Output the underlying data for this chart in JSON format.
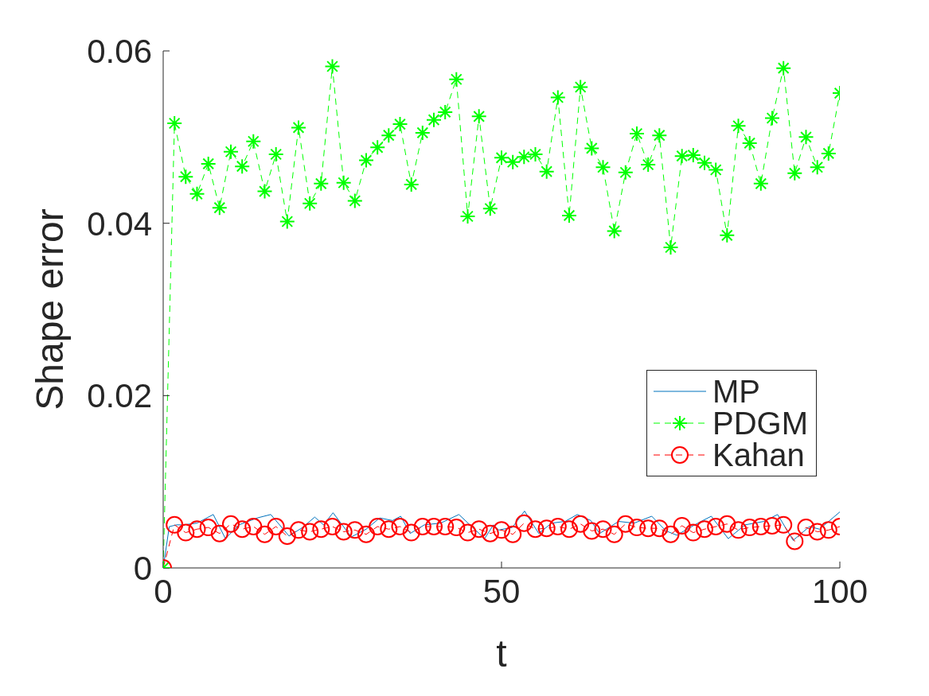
{
  "chart_data": {
    "type": "line",
    "xlabel": "t",
    "ylabel": "Shape error",
    "xlim": [
      0,
      100
    ],
    "xticks": [
      0,
      50,
      100
    ],
    "ylim": [
      0,
      0.06
    ],
    "yticks": [
      0,
      0.02,
      0.04,
      0.06
    ],
    "grid": false,
    "legend": "right",
    "series": [
      {
        "name": "MP",
        "color": "#0072bd",
        "marker": "none",
        "line_style": "solid",
        "x": [
          0,
          0.9,
          2,
          3,
          5,
          7.4,
          9.2,
          11.2,
          13.9,
          15.9,
          18.6,
          20.6,
          22.4,
          23.7,
          25.1,
          27.8,
          30,
          32,
          33.9,
          35.1,
          36.5,
          38.6,
          41,
          43.7,
          47.5,
          48.8,
          49.6,
          51.6,
          53.4,
          55.5,
          57.4,
          59.4,
          61.2,
          63.2,
          64.5,
          67.3,
          69.6,
          72.2,
          74.3,
          75.9,
          79,
          81,
          83.5,
          86,
          88.8,
          90.8,
          93.1,
          95.5,
          97,
          100
        ],
        "values": [
          0,
          0.0048,
          0.005,
          0.005,
          0.0052,
          0.0062,
          0.0034,
          0.005,
          0.0058,
          0.0062,
          0.0037,
          0.0047,
          0.0059,
          0.005,
          0.0064,
          0.0036,
          0.0045,
          0.0058,
          0.0055,
          0.006,
          0.004,
          0.005,
          0.0052,
          0.0062,
          0.0034,
          0.005,
          0.0044,
          0.0047,
          0.0066,
          0.004,
          0.0052,
          0.0054,
          0.0062,
          0.0055,
          0.004,
          0.0054,
          0.0052,
          0.006,
          0.0043,
          0.0038,
          0.0052,
          0.006,
          0.0034,
          0.005,
          0.0054,
          0.0062,
          0.0032,
          0.0048,
          0.0045,
          0.0065
        ]
      },
      {
        "name": "PDGM",
        "color": "#00ff00",
        "marker": "cross",
        "line_style": "dashed",
        "x": [
          0,
          1.67,
          3.33,
          5,
          6.67,
          8.33,
          10,
          11.67,
          13.33,
          15,
          16.67,
          18.33,
          20,
          21.67,
          23.33,
          25,
          26.67,
          28.33,
          30,
          31.67,
          33.33,
          35,
          36.67,
          38.33,
          40,
          41.67,
          43.33,
          45,
          46.67,
          48.33,
          50,
          51.67,
          53.33,
          55,
          56.67,
          58.33,
          60,
          61.67,
          63.33,
          65,
          66.67,
          68.33,
          70,
          71.67,
          73.33,
          75,
          76.67,
          78.33,
          80,
          81.67,
          83.33,
          85,
          86.67,
          88.33,
          90,
          91.67,
          93.33,
          95,
          96.67,
          98.33,
          100
        ],
        "values": [
          0,
          0.0516,
          0.0454,
          0.0434,
          0.0469,
          0.0418,
          0.0483,
          0.0466,
          0.0495,
          0.0437,
          0.048,
          0.0402,
          0.0511,
          0.0423,
          0.0446,
          0.0582,
          0.0447,
          0.0426,
          0.0473,
          0.0488,
          0.0502,
          0.0515,
          0.0445,
          0.0505,
          0.052,
          0.0529,
          0.0567,
          0.0408,
          0.0524,
          0.0417,
          0.0476,
          0.0471,
          0.0477,
          0.048,
          0.046,
          0.0546,
          0.0409,
          0.0558,
          0.0487,
          0.0465,
          0.0391,
          0.0459,
          0.0504,
          0.0468,
          0.0502,
          0.0372,
          0.0478,
          0.0479,
          0.047,
          0.0462,
          0.0386,
          0.0513,
          0.0493,
          0.0446,
          0.0522,
          0.058,
          0.0458,
          0.05,
          0.0465,
          0.0481,
          0.0551
        ]
      },
      {
        "name": "Kahan",
        "color": "#ff0000",
        "marker": "circle",
        "line_style": "dashed",
        "x": [
          0,
          1.67,
          3.33,
          5,
          6.67,
          8.33,
          10,
          11.67,
          13.33,
          15,
          16.67,
          18.33,
          20,
          21.67,
          23.33,
          25,
          26.67,
          28.33,
          30,
          31.67,
          33.33,
          35,
          36.67,
          38.33,
          40,
          41.67,
          43.33,
          45,
          46.67,
          48.33,
          50,
          51.67,
          53.33,
          55,
          56.67,
          58.33,
          60,
          61.67,
          63.33,
          65,
          66.67,
          68.33,
          70,
          71.67,
          73.33,
          75,
          76.67,
          78.33,
          80,
          81.67,
          83.33,
          85,
          86.67,
          88.33,
          90,
          91.67,
          93.33,
          95,
          96.67,
          98.33,
          100
        ],
        "values": [
          0,
          0.005,
          0.0041,
          0.0045,
          0.0047,
          0.004,
          0.0051,
          0.0045,
          0.0048,
          0.0039,
          0.0048,
          0.0037,
          0.0044,
          0.0042,
          0.0045,
          0.0048,
          0.0042,
          0.0044,
          0.0039,
          0.0048,
          0.0045,
          0.0048,
          0.0041,
          0.0048,
          0.0048,
          0.0048,
          0.0047,
          0.0041,
          0.0045,
          0.004,
          0.0044,
          0.0039,
          0.0052,
          0.0045,
          0.0046,
          0.0048,
          0.0045,
          0.0051,
          0.0043,
          0.0045,
          0.0039,
          0.0051,
          0.0047,
          0.0046,
          0.0046,
          0.0039,
          0.0049,
          0.0041,
          0.0045,
          0.0048,
          0.0051,
          0.0044,
          0.0047,
          0.0048,
          0.0049,
          0.005,
          0.0031,
          0.0047,
          0.0042,
          0.0044,
          0.0048
        ]
      }
    ]
  }
}
